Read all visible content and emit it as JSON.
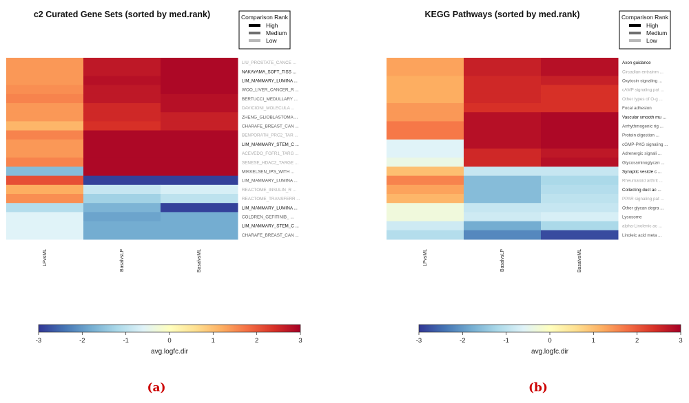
{
  "colorscale": {
    "low": "#313695",
    "mid": "#ffffbf",
    "high": "#a50026",
    "stops": [
      "#313695",
      "#4575b4",
      "#74add1",
      "#abd9e9",
      "#e0f3f8",
      "#ffffbf",
      "#fee090",
      "#fdae61",
      "#f46d43",
      "#d73027",
      "#a50026"
    ]
  },
  "chart_data": [
    {
      "type": "heatmap",
      "title": "c2 Curated Gene Sets (sorted by med.rank)",
      "columns": [
        "LPvsML",
        "BasalvsLP",
        "BasalvsML"
      ],
      "rows": [
        {
          "label": "LIU_PROSTATE_CANCE ...",
          "rank": "Low",
          "values": [
            1.4,
            2.7,
            2.9
          ]
        },
        {
          "label": "NAKAYAMA_SOFT_TISS ...",
          "rank": "High",
          "values": [
            1.4,
            2.7,
            2.9
          ]
        },
        {
          "label": "LIM_MAMMARY_LUMINA ...",
          "rank": "High",
          "values": [
            1.4,
            2.8,
            2.9
          ]
        },
        {
          "label": "WOO_LIVER_CANCER_R ...",
          "rank": "Medium",
          "values": [
            1.5,
            2.7,
            2.9
          ]
        },
        {
          "label": "BERTUCCI_MEDULLARY ...",
          "rank": "Medium",
          "values": [
            1.6,
            2.7,
            2.8
          ]
        },
        {
          "label": "DAVICIONI_MOLECULA ...",
          "rank": "Low",
          "values": [
            1.4,
            2.5,
            2.8
          ]
        },
        {
          "label": "ZHENG_GLIOBLASTOMA ...",
          "rank": "Medium",
          "values": [
            1.4,
            2.5,
            2.6
          ]
        },
        {
          "label": "CHARAFE_BREAST_CAN ...",
          "rank": "Medium",
          "values": [
            1.1,
            2.4,
            2.6
          ]
        },
        {
          "label": "BENPORATH_PRC2_TAR ...",
          "rank": "Low",
          "values": [
            1.6,
            2.9,
            2.9
          ]
        },
        {
          "label": "LIM_MAMMARY_STEM_C ...",
          "rank": "High",
          "values": [
            1.4,
            2.9,
            2.9
          ]
        },
        {
          "label": "ACEVEDO_FGFR1_TARG ...",
          "rank": "Low",
          "values": [
            1.4,
            2.9,
            2.9
          ]
        },
        {
          "label": "SENESE_HDAC2_TARGE ...",
          "rank": "Low",
          "values": [
            1.6,
            2.9,
            2.9
          ]
        },
        {
          "label": "MIKKELSEN_IPS_WITH ...",
          "rank": "Medium",
          "values": [
            -1.6,
            2.9,
            2.9
          ]
        },
        {
          "label": "LIM_MAMMARY_LUMINA ...",
          "rank": "Medium",
          "values": [
            2.1,
            -2.9,
            -2.9
          ]
        },
        {
          "label": "REACTOME_INSULIN_R ...",
          "rank": "Low",
          "values": [
            1.2,
            -0.9,
            -0.7
          ]
        },
        {
          "label": "REACTOME_TRANSFERR ...",
          "rank": "Low",
          "values": [
            1.5,
            -1.3,
            -1.0
          ]
        },
        {
          "label": "LIM_MAMMARY_LUMINA ...",
          "rank": "High",
          "values": [
            -1.1,
            -1.7,
            -2.9
          ]
        },
        {
          "label": "COLDREN_GEFITINIB_ ...",
          "rank": "Medium",
          "values": [
            -0.6,
            -1.9,
            -1.8
          ]
        },
        {
          "label": "LIM_MAMMARY_STEM_C ...",
          "rank": "High",
          "values": [
            -0.6,
            -1.8,
            -1.8
          ]
        },
        {
          "label": "CHARAFE_BREAST_CAN ...",
          "rank": "Medium",
          "values": [
            -0.6,
            -1.8,
            -1.8
          ]
        }
      ],
      "legend": {
        "title": "Comparison Rank",
        "items": [
          "High",
          "Medium",
          "Low"
        ],
        "position": "top-right"
      },
      "colorbar": {
        "label": "avg.logfc.dir",
        "range": [
          -3,
          3
        ],
        "ticks": [
          "-3",
          "-2",
          "-1",
          "0",
          "1",
          "2",
          "3"
        ]
      },
      "panel_label": "(a)"
    },
    {
      "type": "heatmap",
      "title": "KEGG Pathways (sorted by med.rank)",
      "columns": [
        "LPvsML",
        "BasalvsLP",
        "BasalvsML"
      ],
      "rows": [
        {
          "label": "Axon guidance",
          "rank": "High",
          "values": [
            1.3,
            2.6,
            2.8
          ]
        },
        {
          "label": "Circadian entrainm ...",
          "rank": "Low",
          "values": [
            1.3,
            2.6,
            2.8
          ]
        },
        {
          "label": "Oxytocin signaling ...",
          "rank": "Medium",
          "values": [
            1.2,
            2.5,
            2.6
          ]
        },
        {
          "label": "cAMP signaling pat ...",
          "rank": "Low",
          "values": [
            1.2,
            2.5,
            2.4
          ]
        },
        {
          "label": "Other types of O-g ...",
          "rank": "Low",
          "values": [
            1.2,
            2.5,
            2.4
          ]
        },
        {
          "label": "Focal adhesion",
          "rank": "Medium",
          "values": [
            1.4,
            2.4,
            2.4
          ]
        },
        {
          "label": "Vascular smooth mu ...",
          "rank": "High",
          "values": [
            1.4,
            2.8,
            2.9
          ]
        },
        {
          "label": "Arrhythmogenic rig ...",
          "rank": "Medium",
          "values": [
            1.7,
            2.8,
            2.9
          ]
        },
        {
          "label": "Protein digestion ...",
          "rank": "Medium",
          "values": [
            1.7,
            2.8,
            2.9
          ]
        },
        {
          "label": "cGMP-PKG signaling ...",
          "rank": "Medium",
          "values": [
            -0.6,
            2.8,
            2.9
          ]
        },
        {
          "label": "Adrenergic signali ...",
          "rank": "Medium",
          "values": [
            -0.6,
            2.5,
            2.7
          ]
        },
        {
          "label": "Glycosaminoglycan ...",
          "rank": "Medium",
          "values": [
            -0.4,
            2.5,
            2.8
          ]
        },
        {
          "label": "Synaptic vesicle c ...",
          "rank": "High",
          "values": [
            1.0,
            -0.9,
            -0.9
          ]
        },
        {
          "label": "Rheumatoid arthrit ...",
          "rank": "Low",
          "values": [
            1.6,
            -1.6,
            -1.2
          ]
        },
        {
          "label": "Collecting duct ac ...",
          "rank": "High",
          "values": [
            1.3,
            -1.6,
            -1.1
          ]
        },
        {
          "label": "PPAR signaling pat ...",
          "rank": "Low",
          "values": [
            1.1,
            -1.6,
            -1.0
          ]
        },
        {
          "label": "Other glycan degra ...",
          "rank": "Medium",
          "values": [
            -0.3,
            -0.9,
            -0.9
          ]
        },
        {
          "label": "Lysosome",
          "rank": "Medium",
          "values": [
            -0.3,
            -0.8,
            -0.7
          ]
        },
        {
          "label": "alpha-Linolenic ac ...",
          "rank": "Low",
          "values": [
            -0.8,
            -1.8,
            -1.2
          ]
        },
        {
          "label": "Linoleic acid meta ...",
          "rank": "Medium",
          "values": [
            -1.1,
            -2.2,
            -2.8
          ]
        }
      ],
      "legend": {
        "title": "Comparison Rank",
        "items": [
          "High",
          "Medium",
          "Low"
        ],
        "position": "top-right"
      },
      "colorbar": {
        "label": "avg.logfc.dir",
        "range": [
          -3,
          3
        ],
        "ticks": [
          "-3",
          "-2",
          "-1",
          "0",
          "1",
          "2",
          "3"
        ]
      },
      "panel_label": "(b)"
    }
  ]
}
